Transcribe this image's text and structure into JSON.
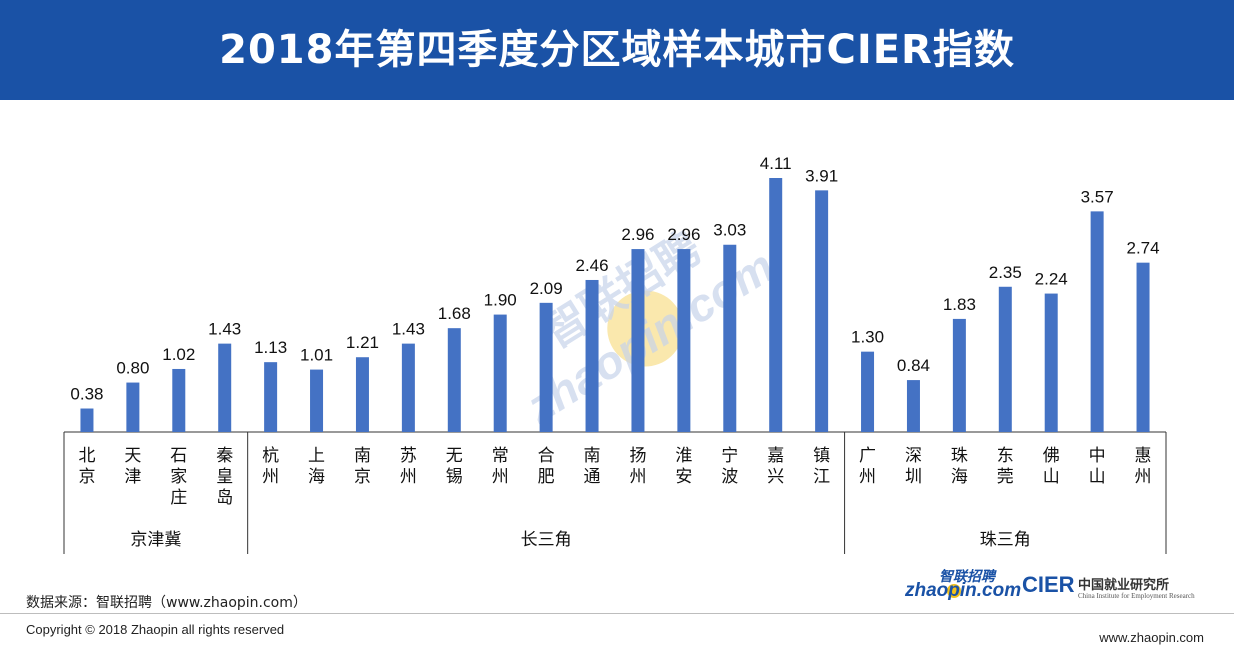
{
  "title": "2018年第四季度分区域样本城市CIER指数",
  "watermark": {
    "cn": "智联招聘",
    "en": "zhaopin.com"
  },
  "source": "数据来源：智联招聘（www.zhaopin.com）",
  "copyright": "Copyright © 2018 Zhaopin all rights reserved",
  "website": "www.zhaopin.com",
  "logos": {
    "zhaopin_cn": "智联招聘",
    "zhaopin_en": "zhaopin.com",
    "cier": "CIER",
    "cier_cn": "中国就业研究所",
    "cier_en": "China Institute for Employment Research"
  },
  "colors": {
    "header": "#1a52a6",
    "bar": "#4472c4",
    "axis": "#333333",
    "watermark": "#c7d3ea",
    "watermark_dot": "#f5d56a"
  },
  "chart_data": {
    "type": "bar",
    "categories": [
      "北京",
      "天津",
      "石家庄",
      "秦皇岛",
      "杭州",
      "上海",
      "南京",
      "苏州",
      "无锡",
      "常州",
      "合肥",
      "南通",
      "扬州",
      "淮安",
      "宁波",
      "嘉兴",
      "镇江",
      "广州",
      "深圳",
      "珠海",
      "东莞",
      "佛山",
      "中山",
      "惠州"
    ],
    "values": [
      0.38,
      0.8,
      1.02,
      1.43,
      1.13,
      1.01,
      1.21,
      1.43,
      1.68,
      1.9,
      2.09,
      2.46,
      2.96,
      2.96,
      3.03,
      4.11,
      3.91,
      1.3,
      0.84,
      1.83,
      2.35,
      2.24,
      3.57,
      2.74
    ],
    "value_labels": [
      "0.38",
      "0.80",
      "1.02",
      "1.43",
      "1.13",
      "1.01",
      "1.21",
      "1.43",
      "1.68",
      "1.90",
      "2.09",
      "2.46",
      "2.96",
      "2.96",
      "3.03",
      "4.11",
      "3.91",
      "1.30",
      "0.84",
      "1.83",
      "2.35",
      "2.24",
      "3.57",
      "2.74"
    ],
    "groups": [
      {
        "name": "京津冀",
        "count": 4
      },
      {
        "name": "长三角",
        "count": 13
      },
      {
        "name": "珠三角",
        "count": 7
      }
    ],
    "ylim": [
      0,
      4.2
    ],
    "grid": false,
    "legend": "none"
  }
}
